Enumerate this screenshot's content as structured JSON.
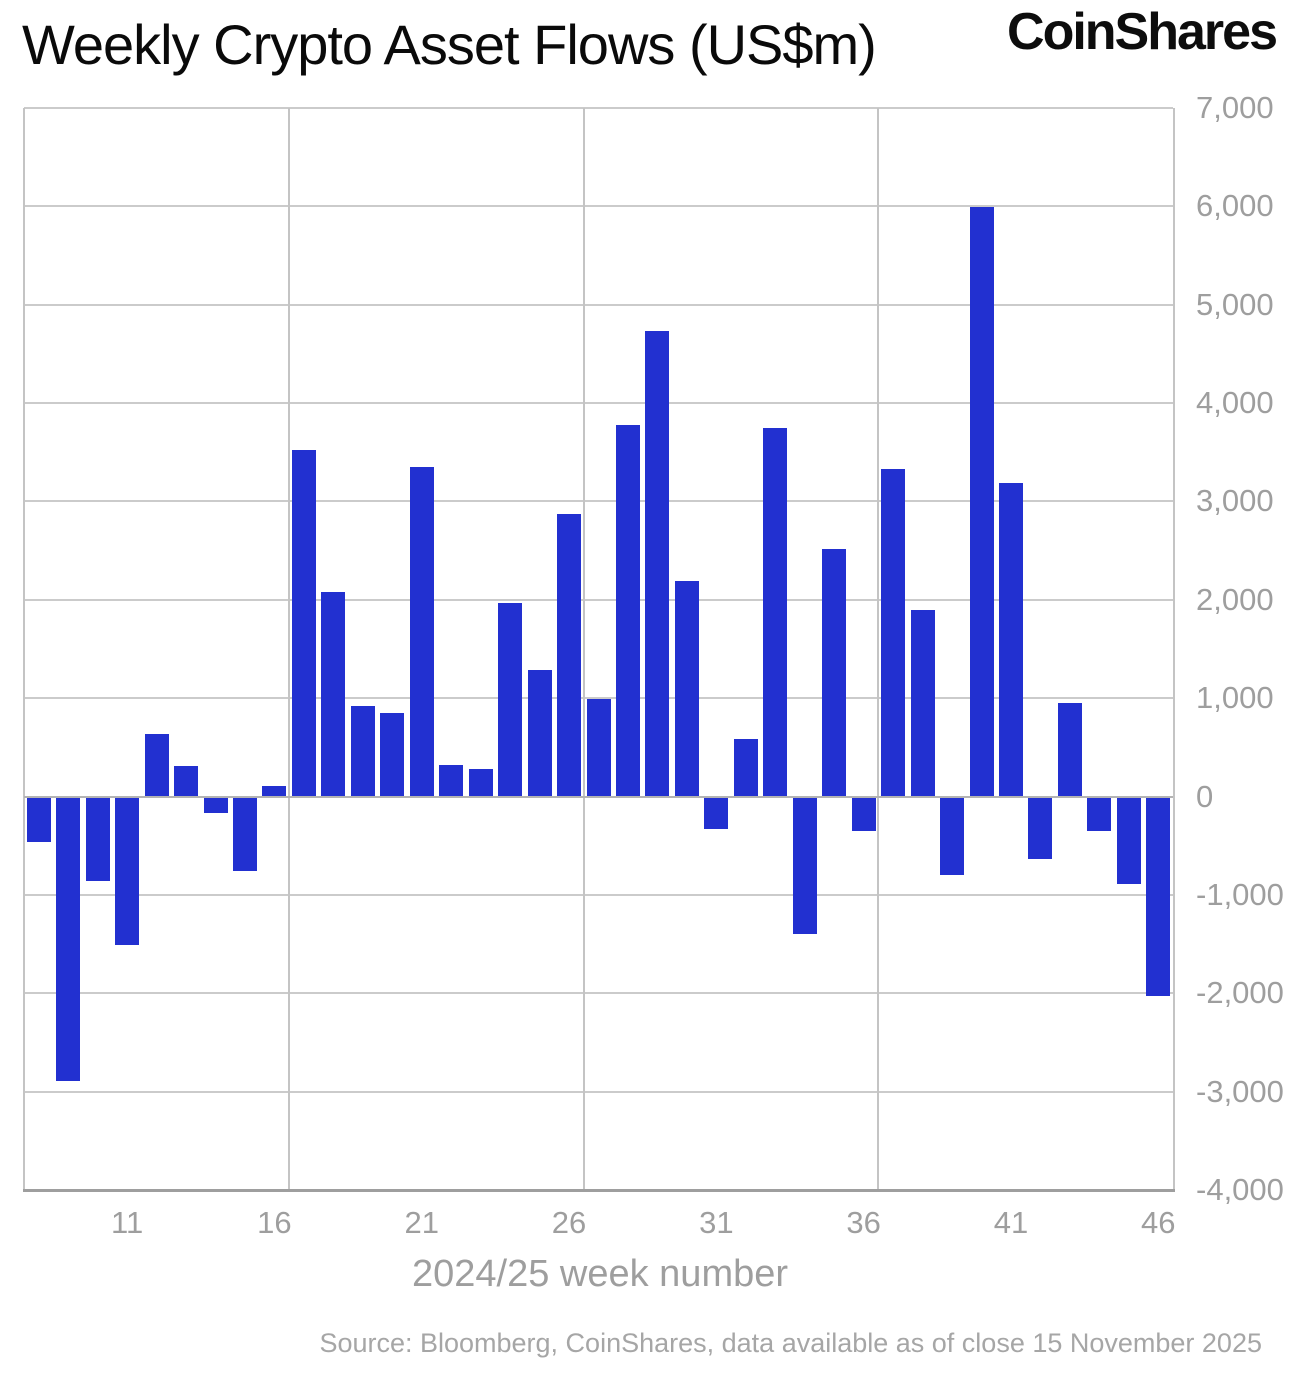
{
  "header": {
    "title": "Weekly Crypto Asset Flows (US$m)",
    "logo": "CoinShares"
  },
  "chart_data": {
    "type": "bar",
    "title": "Weekly Crypto Asset Flows (US$m)",
    "xlabel": "2024/25 week number",
    "ylabel": "",
    "x": [
      8,
      9,
      10,
      11,
      12,
      13,
      14,
      15,
      16,
      17,
      18,
      19,
      20,
      21,
      22,
      23,
      24,
      25,
      26,
      27,
      28,
      29,
      30,
      31,
      32,
      33,
      34,
      35,
      36,
      37,
      38,
      39,
      40,
      41,
      42,
      43,
      44,
      45,
      46
    ],
    "values": [
      -460,
      -2890,
      -860,
      -1510,
      640,
      310,
      -170,
      -760,
      110,
      3520,
      2080,
      920,
      850,
      3350,
      320,
      280,
      1970,
      1290,
      2870,
      990,
      3780,
      4730,
      2190,
      -330,
      580,
      3750,
      -1400,
      2520,
      -350,
      3330,
      1900,
      -800,
      5990,
      3190,
      -630,
      950,
      -350,
      -890,
      -2030
    ],
    "xlim": [
      7.5,
      46.5
    ],
    "ylim": [
      -4000,
      7000
    ],
    "yticks": [
      7000,
      6000,
      5000,
      4000,
      3000,
      2000,
      1000,
      0,
      -1000,
      -2000,
      -3000,
      -4000
    ],
    "ytick_labels": [
      "7,000",
      "6,000",
      "5,000",
      "4,000",
      "3,000",
      "2,000",
      "1,000",
      "0",
      "-1,000",
      "-2,000",
      "-3,000",
      "-4,000"
    ],
    "xticks": [
      11,
      16,
      21,
      26,
      31,
      36,
      41,
      46
    ],
    "x_gridlines": [
      16.5,
      26.5,
      36.5
    ],
    "bar_color": "#2230d0",
    "grid": true,
    "legend": false
  },
  "footer": {
    "source": "Source: Bloomberg, CoinShares, data available as of close 15 November 2025"
  }
}
